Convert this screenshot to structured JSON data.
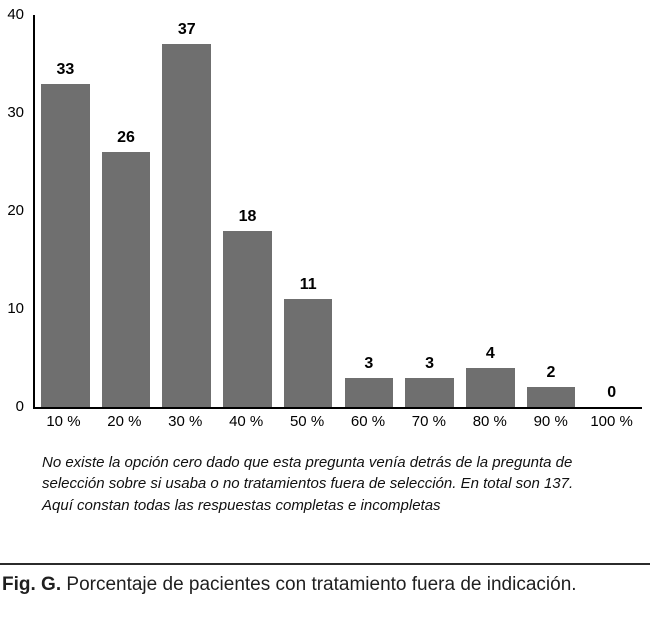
{
  "chart_data": {
    "type": "bar",
    "categories": [
      "10 %",
      "20 %",
      "30 %",
      "40 %",
      "50 %",
      "60 %",
      "70 %",
      "80 %",
      "90 %",
      "100 %"
    ],
    "values": [
      33,
      26,
      37,
      18,
      11,
      3,
      3,
      4,
      2,
      0
    ],
    "title": "",
    "xlabel": "",
    "ylabel": "",
    "ylim": [
      0,
      40
    ],
    "yticks": [
      0,
      10,
      20,
      30,
      40
    ],
    "bar_color": "#6f6f6f",
    "grid": false,
    "legend": "none",
    "data_labels": true
  },
  "note": "No existe la opción cero dado que esta pregunta venía detrás de la pregunta de selección sobre si usaba o no tratamientos fuera de selección. En total son 137. Aquí constan todas las respuestas completas e incompletas",
  "caption": {
    "label": "Fig. G.",
    "text": "Porcentaje de pacientes con tratamiento fuera de indicación."
  }
}
